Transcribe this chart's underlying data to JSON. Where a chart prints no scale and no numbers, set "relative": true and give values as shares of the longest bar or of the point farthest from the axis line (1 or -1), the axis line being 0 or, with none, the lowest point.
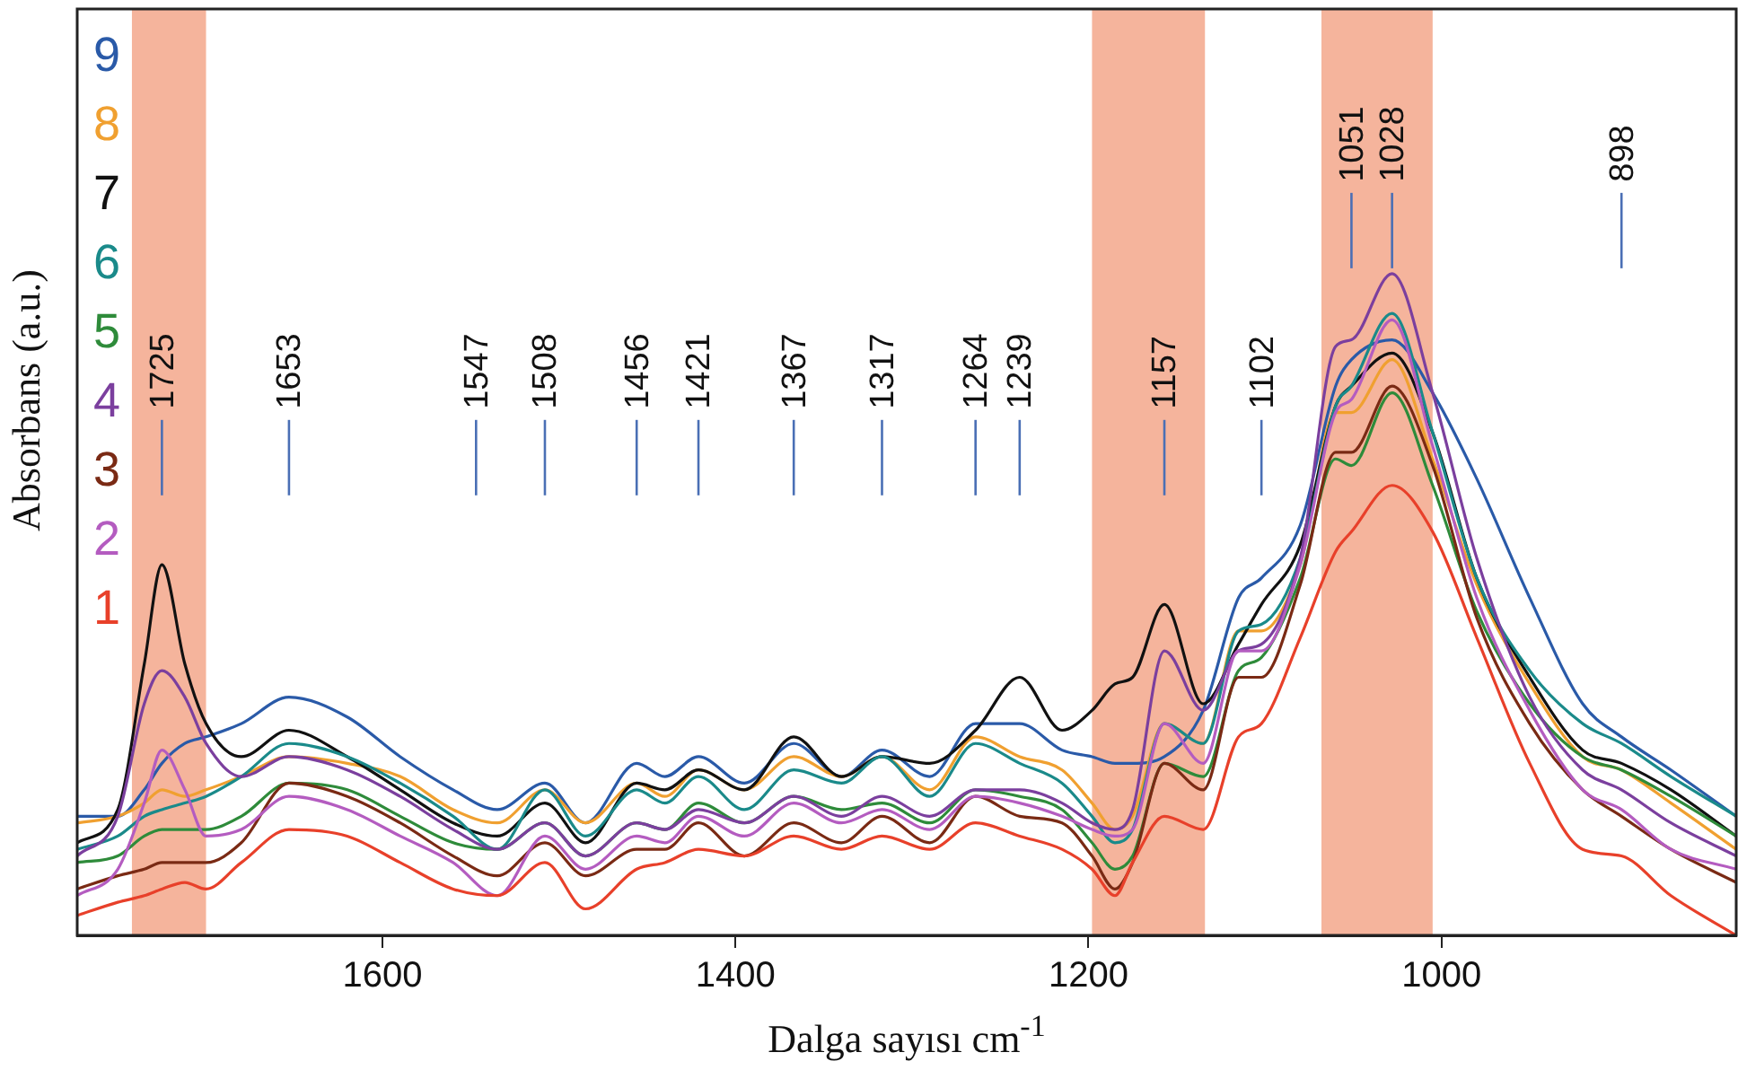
{
  "chart_data": {
    "type": "line",
    "relative": true,
    "xlabel": "Dalga sayısı cm$^{-1}$",
    "ylabel": "Absorbans (a.u.)",
    "xlim": [
      1773,
      833
    ],
    "xticks": [
      1600,
      1400,
      1200,
      1000
    ],
    "grid": false,
    "legend": "top left",
    "x": [
      1773,
      1750,
      1735,
      1725,
      1712,
      1700,
      1680,
      1653,
      1620,
      1590,
      1560,
      1535,
      1508,
      1485,
      1456,
      1440,
      1421,
      1395,
      1367,
      1340,
      1317,
      1290,
      1264,
      1239,
      1215,
      1198,
      1185,
      1175,
      1157,
      1135,
      1115,
      1102,
      1080,
      1060,
      1051,
      1028,
      1005,
      980,
      950,
      920,
      898,
      870,
      833
    ],
    "series": [
      {
        "name": "1",
        "color": "#e8402a",
        "values": [
          0.03,
          0.05,
          0.06,
          0.07,
          0.08,
          0.07,
          0.11,
          0.16,
          0.15,
          0.11,
          0.07,
          0.06,
          0.11,
          0.04,
          0.1,
          0.11,
          0.13,
          0.12,
          0.15,
          0.13,
          0.15,
          0.13,
          0.17,
          0.15,
          0.13,
          0.1,
          0.06,
          0.11,
          0.18,
          0.16,
          0.3,
          0.32,
          0.45,
          0.58,
          0.61,
          0.68,
          0.61,
          0.45,
          0.26,
          0.13,
          0.12,
          0.06,
          0
        ]
      },
      {
        "name": "2",
        "color": "#b45cc0",
        "values": [
          0.06,
          0.1,
          0.2,
          0.28,
          0.22,
          0.15,
          0.16,
          0.21,
          0.19,
          0.15,
          0.11,
          0.06,
          0.15,
          0.1,
          0.15,
          0.14,
          0.18,
          0.15,
          0.2,
          0.17,
          0.19,
          0.16,
          0.21,
          0.2,
          0.18,
          0.16,
          0.15,
          0.16,
          0.32,
          0.26,
          0.43,
          0.43,
          0.56,
          0.79,
          0.81,
          0.93,
          0.74,
          0.51,
          0.34,
          0.22,
          0.19,
          0.13,
          0.1
        ]
      },
      {
        "name": "3",
        "color": "#7a2a14",
        "values": [
          0.07,
          0.09,
          0.1,
          0.11,
          0.11,
          0.11,
          0.14,
          0.23,
          0.21,
          0.17,
          0.12,
          0.09,
          0.14,
          0.09,
          0.13,
          0.13,
          0.17,
          0.12,
          0.17,
          0.14,
          0.18,
          0.14,
          0.21,
          0.18,
          0.17,
          0.12,
          0.07,
          0.11,
          0.26,
          0.22,
          0.39,
          0.39,
          0.53,
          0.73,
          0.73,
          0.83,
          0.71,
          0.48,
          0.32,
          0.22,
          0.18,
          0.13,
          0.08
        ]
      },
      {
        "name": "4",
        "color": "#7b3f9e",
        "values": [
          0.12,
          0.18,
          0.35,
          0.4,
          0.36,
          0.29,
          0.24,
          0.27,
          0.25,
          0.21,
          0.16,
          0.13,
          0.17,
          0.12,
          0.17,
          0.16,
          0.19,
          0.17,
          0.21,
          0.18,
          0.21,
          0.18,
          0.22,
          0.22,
          0.2,
          0.17,
          0.16,
          0.19,
          0.43,
          0.34,
          0.43,
          0.44,
          0.57,
          0.89,
          0.9,
          1,
          0.82,
          0.57,
          0.36,
          0.25,
          0.22,
          0.17,
          0.12
        ]
      },
      {
        "name": "5",
        "color": "#2e8b3a",
        "values": [
          0.11,
          0.12,
          0.15,
          0.16,
          0.16,
          0.16,
          0.18,
          0.23,
          0.22,
          0.18,
          0.14,
          0.13,
          0.17,
          0.12,
          0.17,
          0.16,
          0.2,
          0.17,
          0.21,
          0.19,
          0.2,
          0.17,
          0.22,
          0.21,
          0.19,
          0.14,
          0.1,
          0.12,
          0.26,
          0.24,
          0.4,
          0.42,
          0.54,
          0.72,
          0.71,
          0.82,
          0.68,
          0.49,
          0.35,
          0.27,
          0.25,
          0.21,
          0.15
        ]
      },
      {
        "name": "6",
        "color": "#1a8a8a",
        "values": [
          0.13,
          0.15,
          0.18,
          0.19,
          0.2,
          0.21,
          0.24,
          0.29,
          0.27,
          0.23,
          0.18,
          0.13,
          0.22,
          0.15,
          0.22,
          0.2,
          0.24,
          0.19,
          0.25,
          0.23,
          0.27,
          0.21,
          0.29,
          0.26,
          0.23,
          0.18,
          0.14,
          0.16,
          0.32,
          0.29,
          0.46,
          0.47,
          0.57,
          0.8,
          0.83,
          0.94,
          0.76,
          0.54,
          0.4,
          0.32,
          0.29,
          0.24,
          0.18
        ]
      },
      {
        "name": "7",
        "color": "#111111",
        "values": [
          0.14,
          0.19,
          0.41,
          0.56,
          0.41,
          0.32,
          0.27,
          0.31,
          0.27,
          0.22,
          0.17,
          0.15,
          0.2,
          0.14,
          0.23,
          0.22,
          0.25,
          0.22,
          0.3,
          0.24,
          0.27,
          0.26,
          0.31,
          0.39,
          0.31,
          0.34,
          0.38,
          0.39,
          0.5,
          0.35,
          0.44,
          0.5,
          0.59,
          0.8,
          0.83,
          0.88,
          0.76,
          0.54,
          0.39,
          0.28,
          0.26,
          0.22,
          0.15
        ]
      },
      {
        "name": "8",
        "color": "#f0a030",
        "values": [
          0.17,
          0.18,
          0.2,
          0.22,
          0.21,
          0.22,
          0.24,
          0.27,
          0.26,
          0.24,
          0.19,
          0.17,
          0.22,
          0.17,
          0.23,
          0.21,
          0.25,
          0.22,
          0.27,
          0.24,
          0.27,
          0.22,
          0.3,
          0.27,
          0.25,
          0.2,
          0.16,
          0.18,
          0.32,
          0.29,
          0.46,
          0.46,
          0.56,
          0.79,
          0.79,
          0.87,
          0.72,
          0.53,
          0.38,
          0.27,
          0.25,
          0.2,
          0.13
        ]
      },
      {
        "name": "9",
        "color": "#2a5aa8",
        "values": [
          0.18,
          0.18,
          0.22,
          0.26,
          0.29,
          0.3,
          0.32,
          0.36,
          0.33,
          0.27,
          0.22,
          0.19,
          0.23,
          0.17,
          0.26,
          0.24,
          0.27,
          0.23,
          0.29,
          0.24,
          0.28,
          0.24,
          0.32,
          0.32,
          0.28,
          0.27,
          0.26,
          0.26,
          0.27,
          0.34,
          0.51,
          0.54,
          0.62,
          0.83,
          0.87,
          0.9,
          0.82,
          0.69,
          0.51,
          0.35,
          0.3,
          0.25,
          0.18
        ]
      }
    ],
    "bands": [
      {
        "axis": "x",
        "from": 1742,
        "to": 1700,
        "color": "#f5b49c"
      },
      {
        "axis": "x",
        "from": 1198,
        "to": 1134,
        "color": "#f5b49c"
      },
      {
        "axis": "x",
        "from": 1068,
        "to": 1005,
        "color": "#f5b49c"
      }
    ],
    "ref_lines": [
      {
        "axis": "x",
        "value": 1725,
        "label": "1725",
        "color": "#4a6fb5"
      },
      {
        "axis": "x",
        "value": 1653,
        "label": "1653",
        "color": "#4a6fb5"
      },
      {
        "axis": "x",
        "value": 1547,
        "label": "1547",
        "color": "#4a6fb5"
      },
      {
        "axis": "x",
        "value": 1508,
        "label": "1508",
        "color": "#4a6fb5"
      },
      {
        "axis": "x",
        "value": 1456,
        "label": "1456",
        "color": "#4a6fb5"
      },
      {
        "axis": "x",
        "value": 1421,
        "label": "1421",
        "color": "#4a6fb5"
      },
      {
        "axis": "x",
        "value": 1367,
        "label": "1367",
        "color": "#4a6fb5"
      },
      {
        "axis": "x",
        "value": 1317,
        "label": "1317",
        "color": "#4a6fb5"
      },
      {
        "axis": "x",
        "value": 1264,
        "label": "1264",
        "color": "#4a6fb5"
      },
      {
        "axis": "x",
        "value": 1239,
        "label": "1239",
        "color": "#4a6fb5"
      },
      {
        "axis": "x",
        "value": 1157,
        "label": "1157",
        "color": "#4a6fb5"
      },
      {
        "axis": "x",
        "value": 1102,
        "label": "1102",
        "color": "#4a6fb5"
      },
      {
        "axis": "x",
        "value": 1051,
        "label": "1051",
        "color": "#4a6fb5"
      },
      {
        "axis": "x",
        "value": 1028,
        "label": "1028",
        "color": "#4a6fb5"
      },
      {
        "axis": "x",
        "value": 898,
        "label": "898",
        "color": "#4a6fb5"
      }
    ]
  }
}
